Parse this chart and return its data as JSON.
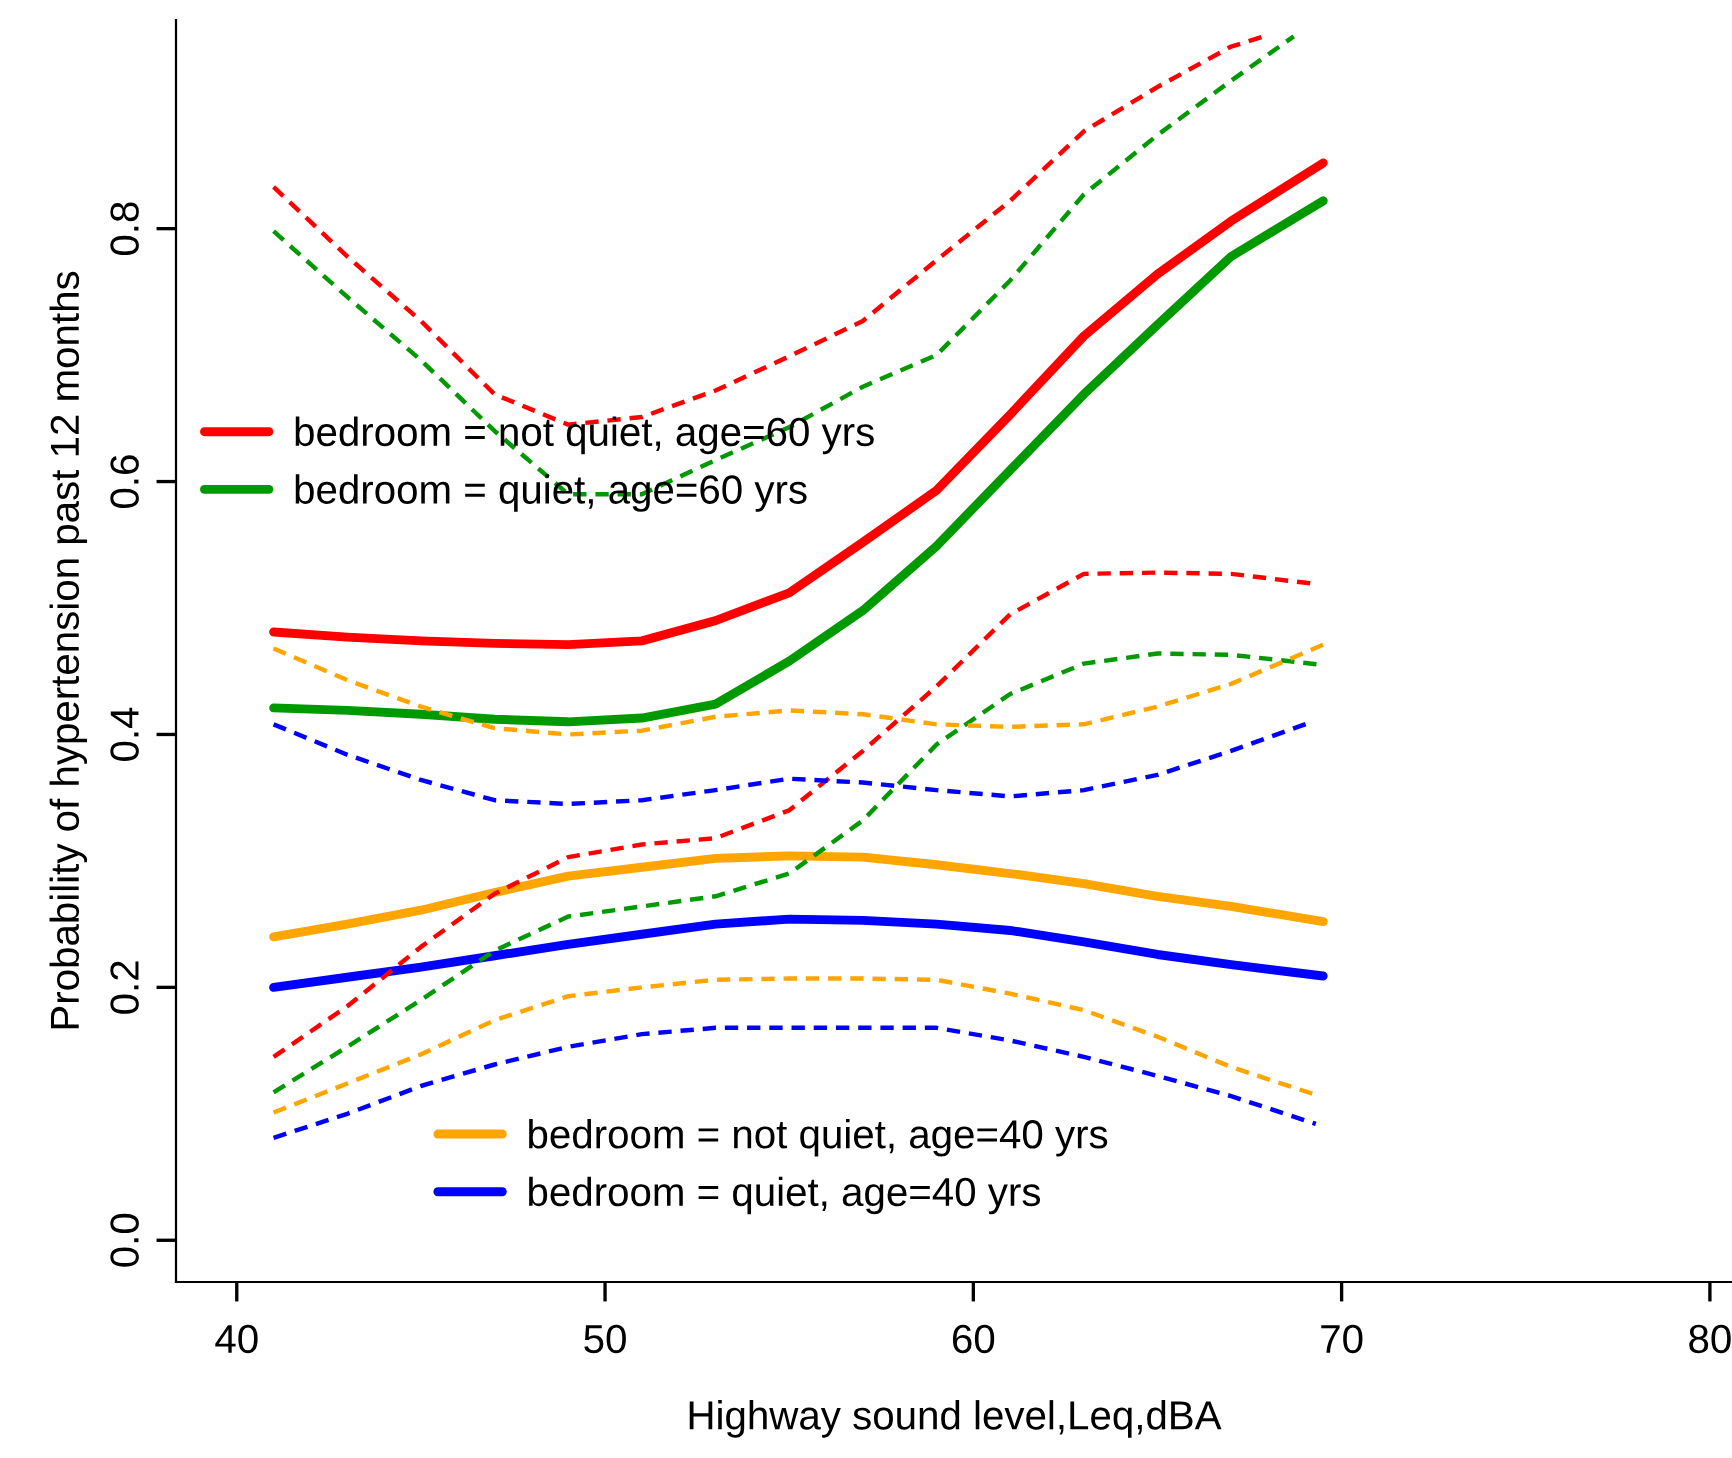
{
  "chart_data": {
    "type": "line",
    "xlabel": "Highway sound level,Leq,dBA",
    "ylabel": "Probability of hypertension past 12 months",
    "x": [
      41,
      43,
      45,
      47,
      49,
      51,
      53,
      55,
      57,
      59,
      61,
      63,
      65,
      67,
      69.5
    ],
    "xlim": [
      38.35,
      80.6
    ],
    "xticks": [
      40,
      50,
      60,
      70,
      80
    ],
    "ylim": [
      -0.033,
      0.965
    ],
    "yticks": [
      {
        "value": 0,
        "label": "0.0"
      },
      0.2,
      0.4,
      0.6,
      0.8
    ],
    "grid": false,
    "legend": "left",
    "marker": "none",
    "series": [
      {
        "name": "bedroom = not quiet, age=60 yrs",
        "color": "#ff0000",
        "line_style": "solid",
        "values": [
          0.481,
          0.477,
          0.474,
          0.472,
          0.471,
          0.474,
          0.49,
          0.512,
          0.552,
          0.593,
          0.653,
          0.715,
          0.764,
          0.806,
          0.852
        ]
      },
      {
        "name": "bedroom = quiet, age=60 yrs",
        "color": "#009900",
        "line_style": "solid",
        "values": [
          0.421,
          0.419,
          0.416,
          0.412,
          0.41,
          0.413,
          0.424,
          0.458,
          0.498,
          0.549,
          0.609,
          0.669,
          0.724,
          0.778,
          0.822
        ]
      },
      {
        "name": "bedroom = not quiet, age=40 yrs",
        "color": "#ffa500",
        "line_style": "solid",
        "values": [
          0.24,
          0.25,
          0.261,
          0.275,
          0.288,
          0.295,
          0.302,
          0.304,
          0.303,
          0.297,
          0.29,
          0.282,
          0.272,
          0.264,
          0.252
        ]
      },
      {
        "name": "bedroom = quiet, age=40 yrs",
        "color": "#0000ff",
        "line_style": "solid",
        "values": [
          0.2,
          0.208,
          0.216,
          0.225,
          0.234,
          0.242,
          0.25,
          0.254,
          0.253,
          0.25,
          0.245,
          0.236,
          0.226,
          0.218,
          0.209
        ]
      },
      {
        "color": "#ff0000",
        "line_style": "dashed",
        "x": [
          41,
          43,
          45,
          47,
          49,
          51,
          53,
          55,
          57,
          59,
          61,
          63,
          65,
          67,
          68
        ],
        "values": [
          0.833,
          0.778,
          0.727,
          0.669,
          0.645,
          0.651,
          0.672,
          0.699,
          0.727,
          0.775,
          0.822,
          0.877,
          0.912,
          0.944,
          0.953
        ]
      },
      {
        "color": "#ff0000",
        "line_style": "dashed",
        "x": [
          41,
          43,
          45,
          47,
          49,
          51,
          53,
          55,
          57,
          59,
          61,
          63,
          65,
          67,
          69.3
        ],
        "values": [
          0.145,
          0.185,
          0.232,
          0.274,
          0.303,
          0.313,
          0.318,
          0.34,
          0.387,
          0.438,
          0.495,
          0.527,
          0.528,
          0.527,
          0.519
        ]
      },
      {
        "color": "#009900",
        "line_style": "dashed",
        "x": [
          41,
          43,
          45,
          47,
          49,
          51,
          53,
          55,
          57,
          59,
          61,
          63,
          65,
          67,
          68.7
        ],
        "values": [
          0.798,
          0.746,
          0.696,
          0.64,
          0.59,
          0.59,
          0.617,
          0.643,
          0.675,
          0.7,
          0.759,
          0.827,
          0.874,
          0.917,
          0.952
        ]
      },
      {
        "color": "#009900",
        "line_style": "dashed",
        "values": [
          0.117,
          0.153,
          0.19,
          0.229,
          0.256,
          0.264,
          0.272,
          0.29,
          0.332,
          0.392,
          0.432,
          0.456,
          0.464,
          0.463,
          0.455
        ]
      },
      {
        "color": "#ffa500",
        "line_style": "dashed",
        "values": [
          0.468,
          0.443,
          0.422,
          0.405,
          0.4,
          0.403,
          0.414,
          0.419,
          0.416,
          0.408,
          0.406,
          0.408,
          0.422,
          0.44,
          0.471
        ]
      },
      {
        "color": "#ffa500",
        "line_style": "dashed",
        "x": [
          41,
          43,
          45,
          47,
          49,
          51,
          53,
          55,
          57,
          59,
          61,
          63,
          65,
          67,
          69.3
        ],
        "values": [
          0.101,
          0.124,
          0.147,
          0.174,
          0.193,
          0.2,
          0.206,
          0.207,
          0.207,
          0.206,
          0.195,
          0.182,
          0.161,
          0.137,
          0.115
        ]
      },
      {
        "color": "#0000ff",
        "line_style": "dashed",
        "x": [
          41,
          43,
          45,
          47,
          49,
          51,
          53,
          55,
          57,
          59,
          61,
          63,
          65,
          67,
          69.2
        ],
        "values": [
          0.408,
          0.384,
          0.364,
          0.348,
          0.345,
          0.348,
          0.356,
          0.365,
          0.362,
          0.356,
          0.351,
          0.356,
          0.368,
          0.387,
          0.41
        ]
      },
      {
        "color": "#0000ff",
        "line_style": "dashed",
        "x": [
          41,
          43,
          45,
          47,
          49,
          51,
          53,
          55,
          57,
          59,
          61,
          63,
          65,
          67,
          69.3
        ],
        "values": [
          0.081,
          0.1,
          0.122,
          0.139,
          0.153,
          0.163,
          0.168,
          0.168,
          0.168,
          0.168,
          0.158,
          0.145,
          0.13,
          0.114,
          0.092
        ]
      }
    ]
  }
}
